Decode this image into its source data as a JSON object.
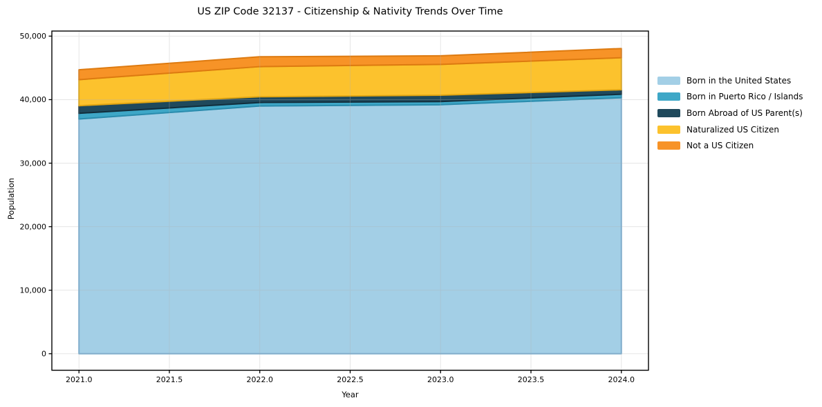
{
  "chart_data": {
    "type": "area",
    "stacked": true,
    "title": "US ZIP Code 32137 - Citizenship & Nativity Trends Over Time",
    "xlabel": "Year",
    "ylabel": "Population",
    "x": [
      2021,
      2022,
      2023,
      2024
    ],
    "series": [
      {
        "name": "Born in the United States",
        "values": [
          36950,
          39000,
          39200,
          40300
        ],
        "color": "#a3cfe6",
        "edge_color": "#77add2"
      },
      {
        "name": "Born in Puerto Rico / Islands",
        "values": [
          900,
          550,
          500,
          550
        ],
        "color": "#3ea7c7",
        "edge_color": "#2a8cad"
      },
      {
        "name": "Born Abroad of US Parent(s)",
        "values": [
          1200,
          900,
          1000,
          700
        ],
        "color": "#1f495c",
        "edge_color": "#122e3c"
      },
      {
        "name": "Naturalized US Citizen",
        "values": [
          4100,
          4750,
          4850,
          5050
        ],
        "color": "#fcc22d",
        "edge_color": "#e0a512"
      },
      {
        "name": "Not a US Citizen",
        "values": [
          1550,
          1550,
          1350,
          1450
        ],
        "color": "#f79327",
        "edge_color": "#dd7a10"
      }
    ],
    "totals": [
      44700,
      46750,
      46900,
      48050
    ],
    "x_ticks": [
      2021.0,
      2021.5,
      2022.0,
      2022.5,
      2023.0,
      2023.5,
      2024.0
    ],
    "x_tick_labels": [
      "2021.0",
      "2021.5",
      "2022.0",
      "2022.5",
      "2023.0",
      "2023.5",
      "2024.0"
    ],
    "y_ticks": [
      0,
      10000,
      20000,
      30000,
      40000,
      50000
    ],
    "y_tick_labels": [
      "0",
      "10,000",
      "20,000",
      "30,000",
      "40,000",
      "50,000"
    ],
    "xlim": [
      2020.85,
      2024.15
    ],
    "ylim": [
      -2600,
      50800
    ],
    "grid": true,
    "grid_color": "#b0b0b0",
    "legend_position": "right-outside",
    "spine_color": "#000000"
  }
}
